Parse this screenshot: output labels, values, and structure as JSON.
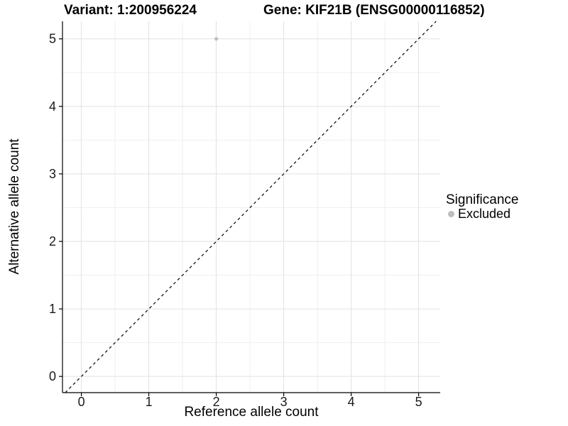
{
  "titles": {
    "variant": "Variant: 1:200956224",
    "gene": "Gene: KIF21B (ENSG00000116852)"
  },
  "x_axis": {
    "label": "Reference allele count"
  },
  "y_axis": {
    "label": "Alternative allele count"
  },
  "legend": {
    "title": "Significance",
    "items": [
      {
        "label": "Excluded",
        "color": "#bdbdbd"
      }
    ]
  },
  "colors": {
    "background": "#ffffff",
    "axis_line": "#000000",
    "tick_label": "#1a1a1a",
    "grid_major": "#e2e2e2",
    "grid_minor": "#efefef",
    "reference_line": "#000000",
    "excluded_point": "#bebebe"
  },
  "chart_data": {
    "type": "scatter",
    "title": "Variant: 1:200956224   Gene: KIF21B (ENSG00000116852)",
    "xlabel": "Reference allele count",
    "ylabel": "Alternative allele count",
    "xlim": [
      -0.28,
      5.32
    ],
    "ylim": [
      -0.24,
      5.26
    ],
    "x_ticks": [
      0,
      1,
      2,
      3,
      4,
      5
    ],
    "y_ticks": [
      0,
      1,
      2,
      3,
      4,
      5
    ],
    "grid": "major+minor",
    "legend_position": "right",
    "legend_title": "Significance",
    "series": [
      {
        "name": "Excluded",
        "color": "#bebebe",
        "point_radius": 2.6,
        "points": [
          {
            "x": 2,
            "y": 5
          }
        ]
      }
    ],
    "reference_line": {
      "type": "identity",
      "slope": 1,
      "intercept": 0,
      "style": "dashed",
      "color": "#000000"
    }
  }
}
